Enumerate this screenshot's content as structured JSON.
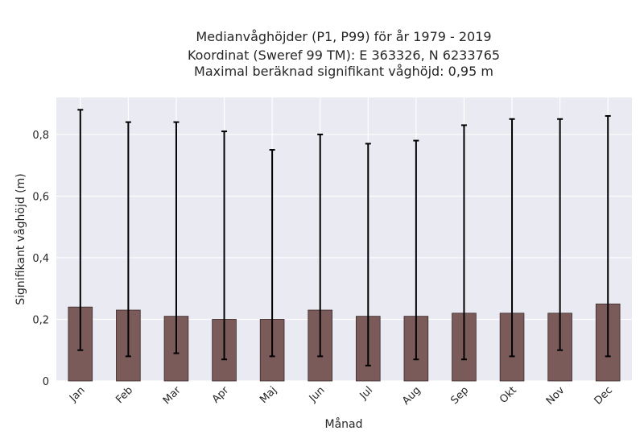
{
  "chart_data": {
    "type": "bar",
    "title_lines": [
      "Medianvåghöjder (P1, P99) för år 1979 - 2019",
      "Koordinat (Sweref 99 TM): E 363326, N 6233765",
      "Maximal beräknad signifikant våghöjd: 0,95 m"
    ],
    "xlabel": "Månad",
    "ylabel": "Signifikant våghöjd (m)",
    "categories": [
      "Jan",
      "Feb",
      "Mar",
      "Apr",
      "Maj",
      "Jun",
      "Jul",
      "Aug",
      "Sep",
      "Okt",
      "Nov",
      "Dec"
    ],
    "values": [
      0.24,
      0.23,
      0.21,
      0.2,
      0.2,
      0.23,
      0.21,
      0.21,
      0.22,
      0.22,
      0.22,
      0.25
    ],
    "p1": [
      0.1,
      0.08,
      0.09,
      0.07,
      0.08,
      0.08,
      0.05,
      0.07,
      0.07,
      0.08,
      0.1,
      0.08
    ],
    "p99": [
      0.88,
      0.84,
      0.84,
      0.81,
      0.75,
      0.8,
      0.77,
      0.78,
      0.83,
      0.85,
      0.85,
      0.86
    ],
    "ylim": [
      0,
      0.92
    ],
    "yticks": [
      0,
      0.2,
      0.4,
      0.6,
      0.8
    ],
    "ytick_labels": [
      "0",
      "0,2",
      "0,4",
      "0,6",
      "0,8"
    ],
    "grid": true,
    "colors": {
      "bar": "#7b5a5a",
      "bar_edge": "#3a2a2a",
      "error": "#000000",
      "plot_bg": "#eaeaf2",
      "grid": "#ffffff"
    }
  }
}
